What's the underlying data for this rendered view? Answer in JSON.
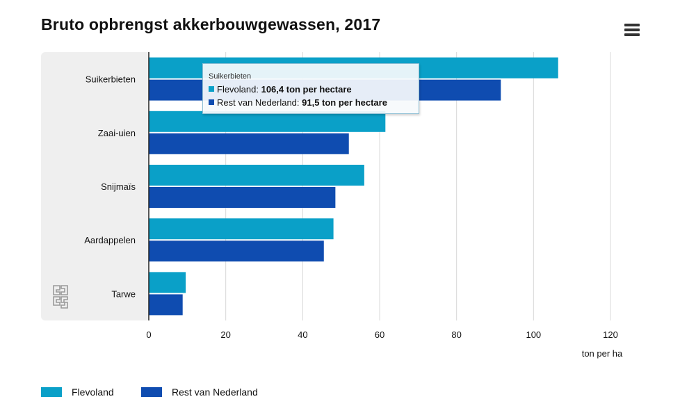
{
  "header": {
    "title": "Bruto opbrengst akkerbouwgewassen, 2017"
  },
  "menu": {
    "icon": "hamburger-menu-icon"
  },
  "colors": {
    "flevoland": "#0aa0c8",
    "rest": "#0f4cb0",
    "plot_background": "#efefef",
    "grid": "#d8d8d8",
    "axis": "#222222"
  },
  "chart_data": {
    "type": "bar",
    "orientation": "horizontal",
    "title": "Bruto opbrengst akkerbouwgewassen, 2017",
    "categories": [
      "Suikerbieten",
      "Zaai-uien",
      "Snijmaïs",
      "Aardappelen",
      "Tarwe"
    ],
    "series": [
      {
        "name": "Flevoland",
        "values": [
          106.4,
          61.5,
          56.0,
          48.0,
          9.6
        ]
      },
      {
        "name": "Rest van Nederland",
        "values": [
          91.5,
          52.0,
          48.5,
          45.5,
          8.8
        ]
      }
    ],
    "xticks": [
      "0",
      "20",
      "40",
      "60",
      "80",
      "100",
      "120"
    ],
    "xlim": [
      0,
      120
    ],
    "xlabel": "ton per ha",
    "grid": "vertical",
    "legend_placement": "bottom-left"
  },
  "tooltip": {
    "title": "Suikerbieten",
    "row1_label": "Flevoland: ",
    "row1_value": "106,4 ton per hectare",
    "row2_label": "Rest van Nederland: ",
    "row2_value": "91,5 ton per hectare"
  },
  "legend": {
    "items": [
      {
        "label": "Flevoland"
      },
      {
        "label": "Rest van Nederland"
      }
    ]
  }
}
